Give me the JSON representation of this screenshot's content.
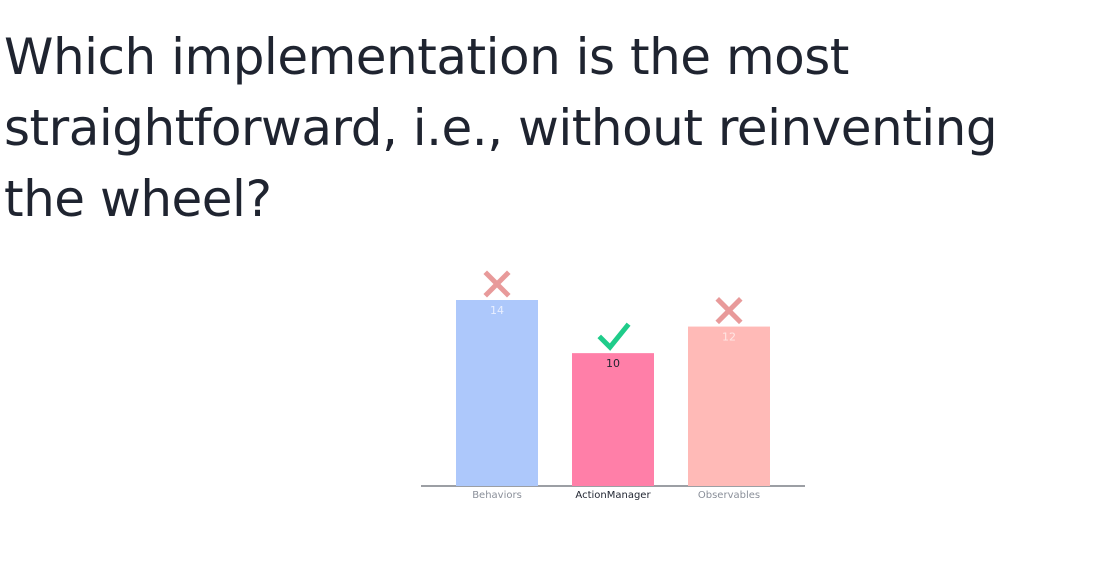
{
  "question": {
    "text": "Which implementation is the most straightforward, i.e., without reinventing the wheel?"
  },
  "chart_data": {
    "type": "bar",
    "categories": [
      "Behaviors",
      "ActionManager",
      "Observables"
    ],
    "values": [
      14,
      10,
      12
    ],
    "colors": [
      "#adc8fb",
      "#ff7fa8",
      "#ffbab7"
    ],
    "value_label_colors": [
      "#e9efff",
      "#1f2430",
      "#ffe6e4"
    ],
    "category_label_colors": [
      "#8a8f99",
      "#1f2430",
      "#8a8f99"
    ],
    "markers": [
      "cross",
      "check",
      "cross"
    ],
    "marker_colors": {
      "cross": "#e89a9a",
      "check": "#1fcc8a"
    },
    "ylim": [
      0,
      14
    ]
  }
}
